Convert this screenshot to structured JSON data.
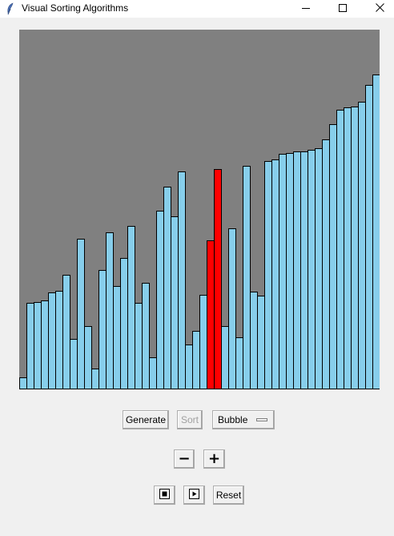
{
  "window": {
    "title": "Visual Sorting Algorithms"
  },
  "controls": {
    "generate_label": "Generate",
    "sort_label": "Sort",
    "algorithm_selected": "Bubble",
    "decrease_symbol": "−",
    "increase_symbol": "+",
    "reset_label": "Reset"
  },
  "colors": {
    "canvas_bg": "#808080",
    "bar_default": "#87ceeb",
    "bar_active": "#ff0000"
  },
  "bars": {
    "values": [
      14,
      107,
      108,
      110,
      120,
      122,
      142,
      62,
      187,
      78,
      25,
      148,
      195,
      128,
      163,
      203,
      107,
      132,
      39,
      222,
      252,
      215,
      271,
      55,
      72,
      117,
      185,
      274,
      78,
      200,
      64,
      278,
      121,
      116,
      284,
      286,
      293,
      294,
      296,
      296,
      298,
      300,
      311,
      330,
      348,
      351,
      352,
      358,
      379,
      392
    ],
    "highlighted_indices": [
      26,
      27
    ]
  }
}
